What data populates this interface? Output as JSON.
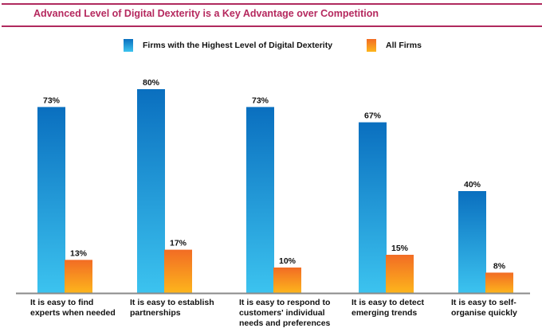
{
  "title": "Advanced Level of Digital Dexterity is a Key Advantage over Competition",
  "colors": {
    "title": "#b5285e",
    "rule": "#b02a5e",
    "series1_top": "#0a6fbf",
    "series1_bottom": "#3cc3ef",
    "series2_top": "#f26c24",
    "series2_bottom": "#fdb51c",
    "baseline": "#8a8a8a"
  },
  "chart_data": {
    "type": "bar",
    "title": "Advanced Level of Digital Dexterity is a Key Advantage over Competition",
    "xlabel": "",
    "ylabel": "",
    "ylim": [
      0,
      100
    ],
    "grid": false,
    "legend_position": "top-center",
    "categories": [
      "It is easy to find experts when needed",
      "It is easy to establish partnerships",
      "It is easy to respond to customers' individual needs and preferences",
      "It is easy to detect emerging trends",
      "It is easy to self-organise quickly"
    ],
    "series": [
      {
        "name": "Firms with the Highest Level of Digital Dexterity",
        "values": [
          73,
          80,
          73,
          67,
          40
        ],
        "labels": [
          "73%",
          "80%",
          "73%",
          "67%",
          "40%"
        ]
      },
      {
        "name": "All Firms",
        "values": [
          13,
          17,
          10,
          15,
          8
        ],
        "labels": [
          "13%",
          "17%",
          "10%",
          "15%",
          "8%"
        ]
      }
    ]
  }
}
